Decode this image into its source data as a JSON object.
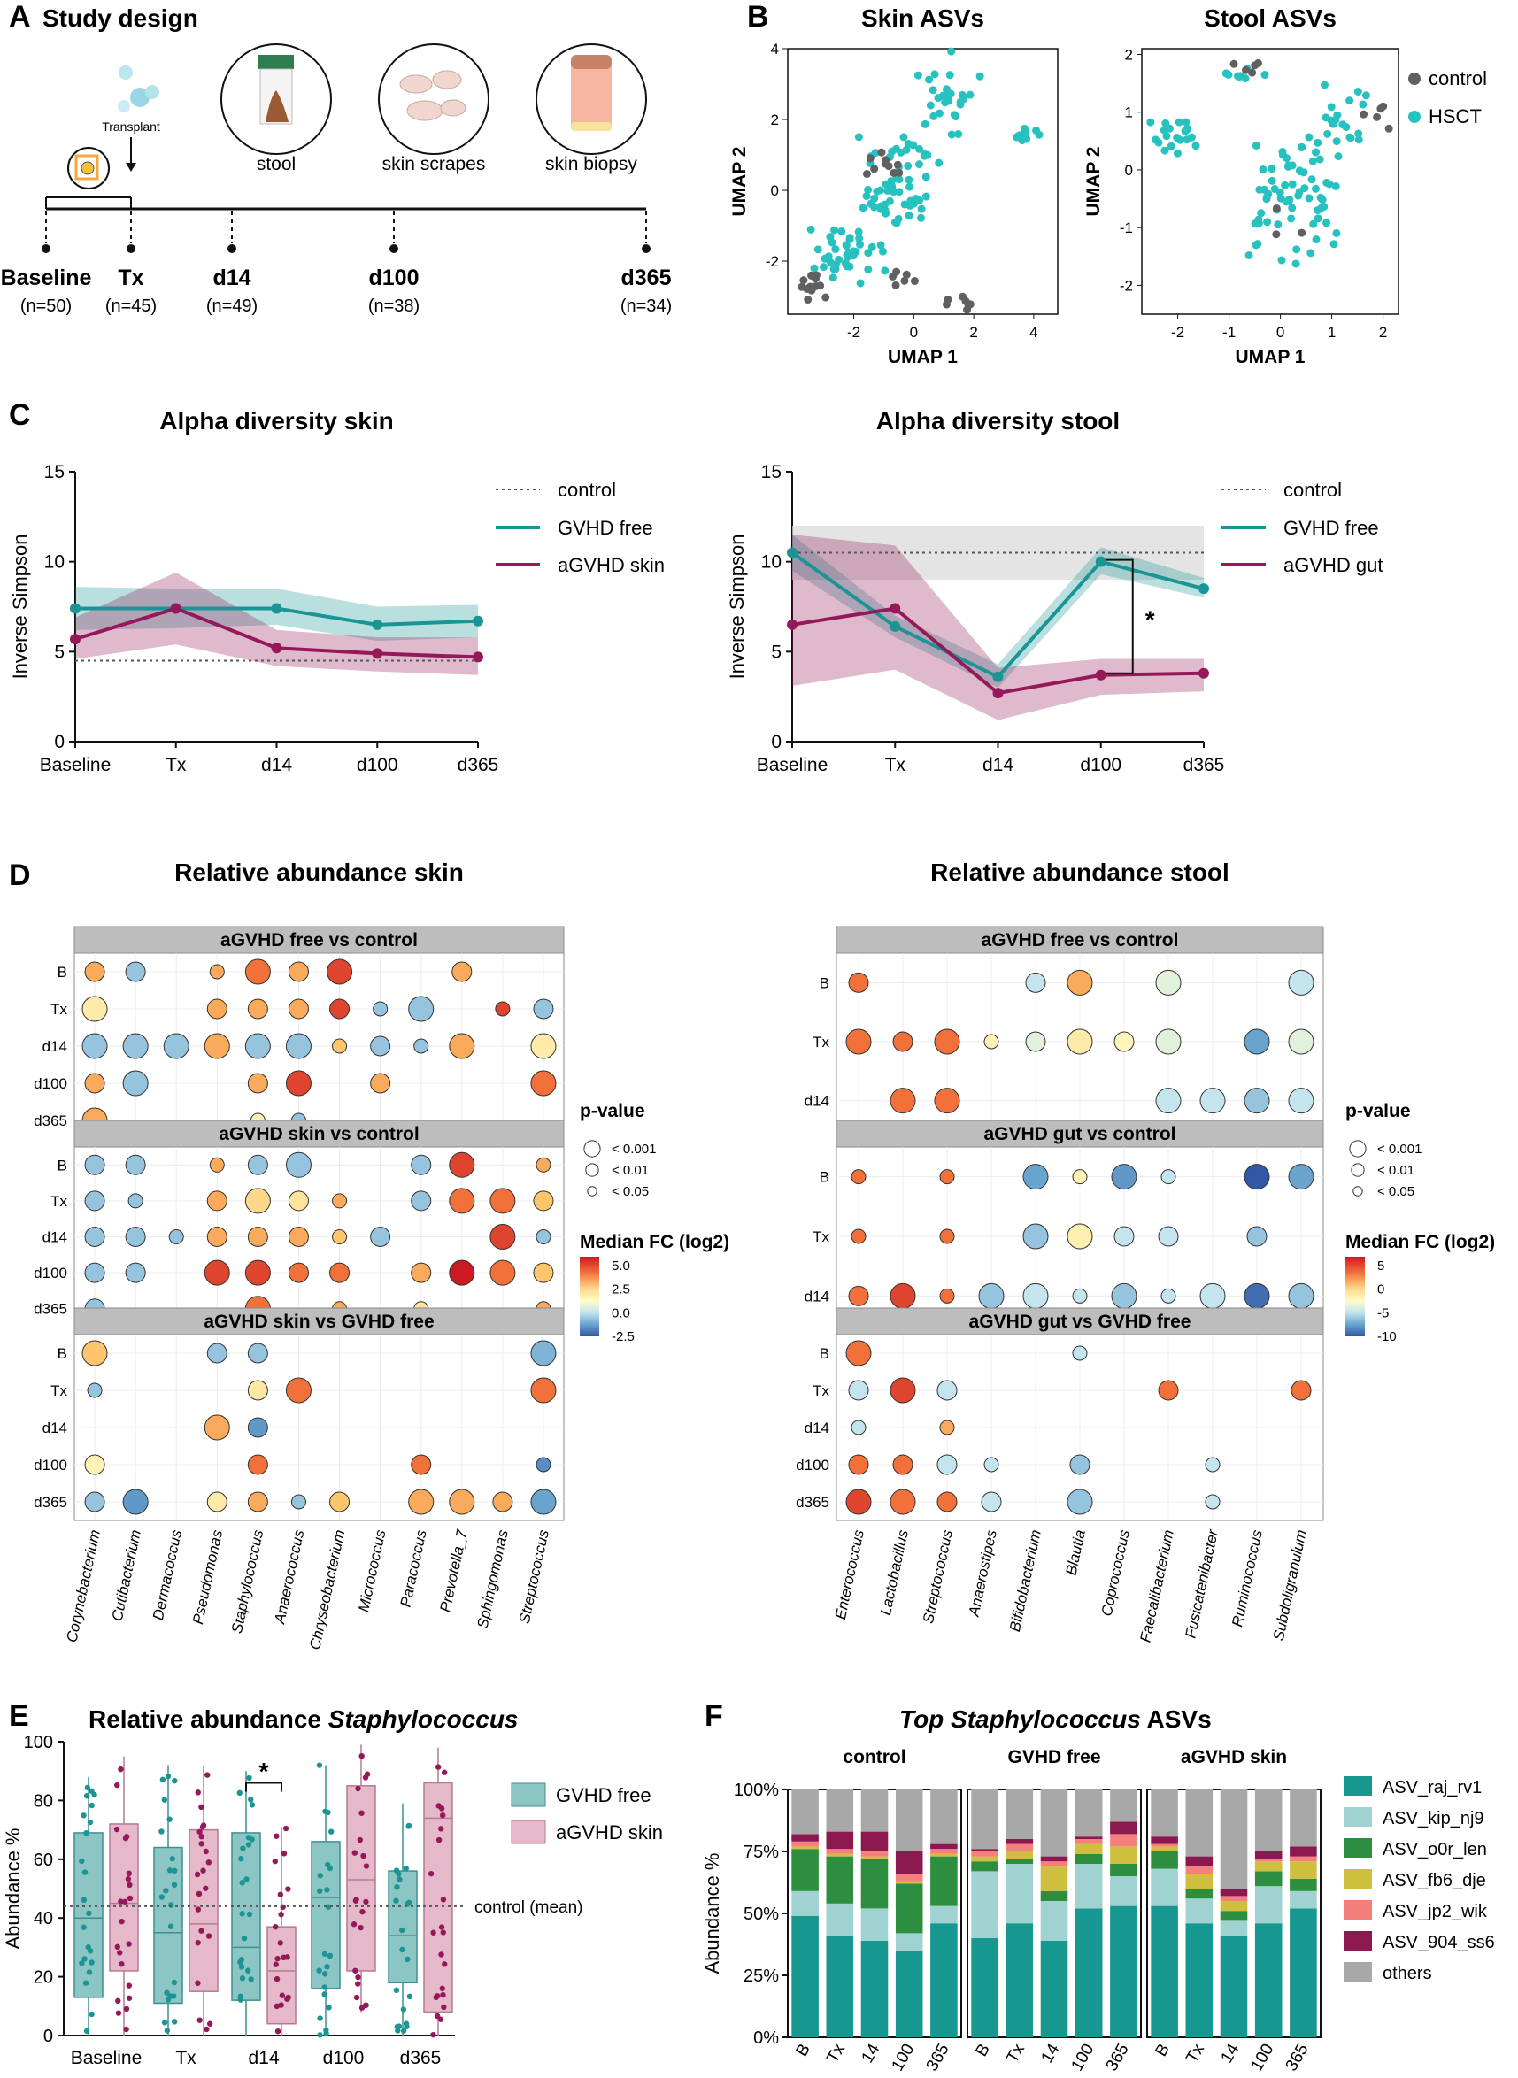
{
  "colors": {
    "gvhd_free": "#1a9494",
    "agvhd": "#95195a",
    "control": "#606060",
    "hsct": "#27c2c0",
    "grey_box": "#bdbdbd",
    "pink_box": "#e5b8ca",
    "teal_box": "#8cc6c4"
  },
  "panelA": {
    "letter": "A",
    "title": "Study design",
    "transplant": "Transplant",
    "samples": [
      "stool",
      "skin scrapes",
      "skin biopsy"
    ],
    "timepoints": [
      {
        "label": "Baseline",
        "n": "(n=50)"
      },
      {
        "label": "Tx",
        "n": "(n=45)"
      },
      {
        "label": "d14",
        "n": "(n=49)"
      },
      {
        "label": "d100",
        "n": "(n=38)"
      },
      {
        "label": "d365",
        "n": "(n=34)"
      }
    ]
  },
  "panelB": {
    "letter": "B",
    "legend": [
      "control",
      "HSCT"
    ],
    "charts": [
      {
        "title": "Skin ASVs",
        "xlabel": "UMAP 1",
        "ylabel": "UMAP 2",
        "xticks": [
          "-2",
          "0",
          "2",
          "4"
        ],
        "yticks": [
          "-2",
          "0",
          "2",
          "4"
        ],
        "xlim": [
          -4.2,
          4.8
        ],
        "ylim": [
          -3.5,
          4.0
        ]
      },
      {
        "title": "Stool ASVs",
        "xlabel": "UMAP 1",
        "ylabel": "UMAP 2",
        "xticks": [
          "-2",
          "-1",
          "0",
          "1",
          "2"
        ],
        "yticks": [
          "-2",
          "-1",
          "0",
          "1",
          "2"
        ],
        "xlim": [
          -2.7,
          2.3
        ],
        "ylim": [
          -2.5,
          2.1
        ]
      }
    ]
  },
  "panelC": {
    "letter": "C",
    "xticks": [
      "Baseline",
      "Tx",
      "d14",
      "d100",
      "d365"
    ],
    "ylabel": "Inverse Simpson",
    "yticks": [
      "0",
      "5",
      "10",
      "15"
    ],
    "charts": [
      {
        "title": "Alpha diversity skin",
        "legend": [
          "control",
          "GVHD free",
          "aGVHD skin"
        ]
      },
      {
        "title": "Alpha diversity stool",
        "legend": [
          "control",
          "GVHD free",
          "aGVHD gut"
        ],
        "sig": "*"
      }
    ]
  },
  "panelD": {
    "letter": "D",
    "skin": {
      "title": "Relative abundance skin",
      "facets": [
        "aGVHD free vs control",
        "aGVHD skin vs control",
        "aGVHD skin vs GVHD free"
      ],
      "genera": [
        "Corynebacterium",
        "Cutibacterium",
        "Dermacoccus",
        "Pseudomonas",
        "Staphylococcus",
        "Anaerococcus",
        "Chryseobacterium",
        "Micrococcus",
        "Paracoccus",
        "Prevotella_7",
        "Sphingomonas",
        "Streptococcus"
      ],
      "rows": [
        [
          "B",
          "Tx",
          "d14",
          "d100",
          "d365"
        ],
        [
          "B",
          "Tx",
          "d14",
          "d100",
          "d365"
        ],
        [
          "B",
          "Tx",
          "d14",
          "d100",
          "d365"
        ]
      ],
      "legend": {
        "p_title": "p-value",
        "p_labels": [
          "< 0.001",
          "< 0.01",
          "< 0.05"
        ],
        "fc_title": "Median FC (log2)",
        "fc_labels": [
          "5.0",
          "2.5",
          "0.0",
          "-2.5"
        ]
      }
    },
    "stool": {
      "title": "Relative abundance stool",
      "facets": [
        "aGVHD free vs control",
        "aGVHD gut vs control",
        "aGVHD gut vs GVHD free"
      ],
      "genera": [
        "Enterococcus",
        "Lactobacillus",
        "Streptococcus",
        "Anaerostipes",
        "Bifidobacterium",
        "Blautia",
        "Coprococcus",
        "Faecalibacterium",
        "Fusicatenibacter",
        "Ruminococcus",
        "Subdoligranulum"
      ],
      "rows": [
        [
          "B",
          "Tx",
          "d14"
        ],
        [
          "B",
          "Tx",
          "d14"
        ],
        [
          "B",
          "Tx",
          "d14",
          "d100",
          "d365"
        ]
      ],
      "legend": {
        "p_title": "p-value",
        "p_labels": [
          "< 0.001",
          "< 0.01",
          "< 0.05"
        ],
        "fc_title": "Median FC (log2)",
        "fc_labels": [
          "5",
          "0",
          "-5",
          "-10"
        ]
      }
    }
  },
  "panelE": {
    "letter": "E",
    "title_prefix": "Relative abundance ",
    "title_italic": "Staphylococcus",
    "ylabel": "Abundance %",
    "yticks": [
      "0",
      "20",
      "40",
      "60",
      "80",
      "100"
    ],
    "xticks": [
      "Baseline",
      "Tx",
      "d14",
      "d100",
      "d365"
    ],
    "legend": [
      "GVHD free",
      "aGVHD skin"
    ],
    "control_label": "control (mean)",
    "sig": "*",
    "chart_data": {
      "type": "box",
      "control_mean": 44,
      "GVHD free": [
        {
          "q1": 13,
          "med": 40,
          "q3": 69,
          "min": 0,
          "max": 88
        },
        {
          "q1": 11,
          "med": 35,
          "q3": 64,
          "min": 0,
          "max": 92
        },
        {
          "q1": 12,
          "med": 30,
          "q3": 69,
          "min": 0,
          "max": 90
        },
        {
          "q1": 16,
          "med": 47,
          "q3": 66,
          "min": 0,
          "max": 92
        },
        {
          "q1": 18,
          "med": 34,
          "q3": 56,
          "min": 0,
          "max": 79
        }
      ],
      "aGVHD skin": [
        {
          "q1": 22,
          "med": 45,
          "q3": 72,
          "min": 0,
          "max": 95
        },
        {
          "q1": 15,
          "med": 38,
          "q3": 70,
          "min": 0,
          "max": 92
        },
        {
          "q1": 4,
          "med": 22,
          "q3": 37,
          "min": 0,
          "max": 71
        },
        {
          "q1": 22,
          "med": 53,
          "q3": 85,
          "min": 8,
          "max": 99
        },
        {
          "q1": 8,
          "med": 74,
          "q3": 86,
          "min": 0,
          "max": 98
        }
      ]
    }
  },
  "panelF": {
    "letter": "F",
    "title_italic": "Top Staphylococcus",
    "title_suffix": " ASVs",
    "ylabel": "Abundance %",
    "yticks": [
      "0%",
      "25%",
      "50%",
      "75%",
      "100%"
    ],
    "xticks": [
      "B",
      "Tx",
      "14",
      "100",
      "365"
    ],
    "chart_data": {
      "type": "stacked_bar",
      "series": [
        "ASV_raj_rv1",
        "ASV_kip_nj9",
        "ASV_o0r_len",
        "ASV_fb6_dje",
        "ASV_jp2_wik",
        "ASV_904_ss6",
        "others"
      ],
      "groups": [
        {
          "name": "control",
          "bars": [
            [
              49,
              10,
              17,
              1,
              2,
              3,
              18
            ],
            [
              41,
              13,
              19,
              1,
              2,
              7,
              17
            ],
            [
              39,
              13,
              20,
              1,
              2,
              8,
              17
            ],
            [
              35,
              7,
              20,
              1,
              3,
              9,
              25
            ],
            [
              46,
              7,
              20,
              1,
              2,
              2,
              22
            ]
          ]
        },
        {
          "name": "GVHD free",
          "bars": [
            [
              40,
              27,
              4,
              2,
              2,
              1,
              24
            ],
            [
              46,
              24,
              2,
              3,
              3,
              2,
              20
            ],
            [
              39,
              16,
              4,
              10,
              2,
              2,
              27
            ],
            [
              52,
              18,
              4,
              4,
              2,
              1,
              19
            ],
            [
              53,
              12,
              5,
              7,
              5,
              5,
              13
            ]
          ]
        },
        {
          "name": "aGVHD skin",
          "bars": [
            [
              53,
              15,
              7,
              2,
              1,
              3,
              19
            ],
            [
              46,
              10,
              4,
              6,
              3,
              4,
              27
            ],
            [
              41,
              6,
              4,
              4,
              2,
              3,
              40
            ],
            [
              46,
              15,
              6,
              4,
              1,
              3,
              25
            ],
            [
              52,
              7,
              5,
              7,
              2,
              4,
              23
            ]
          ]
        }
      ]
    }
  }
}
